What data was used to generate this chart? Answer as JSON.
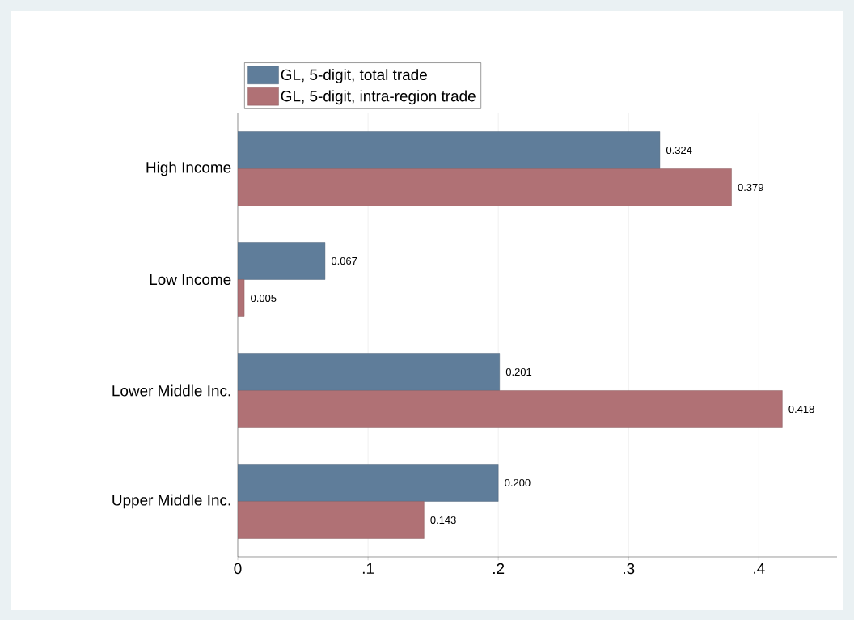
{
  "chart_data": {
    "type": "bar",
    "orientation": "horizontal",
    "categories": [
      "High Income",
      "Low Income",
      "Lower Middle Inc.",
      "Upper Middle Inc."
    ],
    "series": [
      {
        "name": "GL, 5-digit, total trade",
        "color": "#5f7d9a",
        "values": [
          0.324,
          0.067,
          0.201,
          0.2
        ],
        "value_labels": [
          "0.324",
          "0.067",
          "0.201",
          "0.200"
        ]
      },
      {
        "name": "GL, 5-digit, intra-region trade",
        "color": "#b07175",
        "values": [
          0.379,
          0.005,
          0.418,
          0.143
        ],
        "value_labels": [
          "0.379",
          "0.005",
          "0.418",
          "0.143"
        ]
      }
    ],
    "xlim": [
      0,
      0.46
    ],
    "xticks": [
      0,
      {
        "value": 0.1,
        "label": ".1"
      },
      {
        "value": 0.2,
        "label": ".2"
      },
      {
        "value": 0.3,
        "label": ".3"
      },
      {
        "value": 0.4,
        "label": ".4"
      }
    ],
    "grid": "x",
    "legend": "top"
  }
}
